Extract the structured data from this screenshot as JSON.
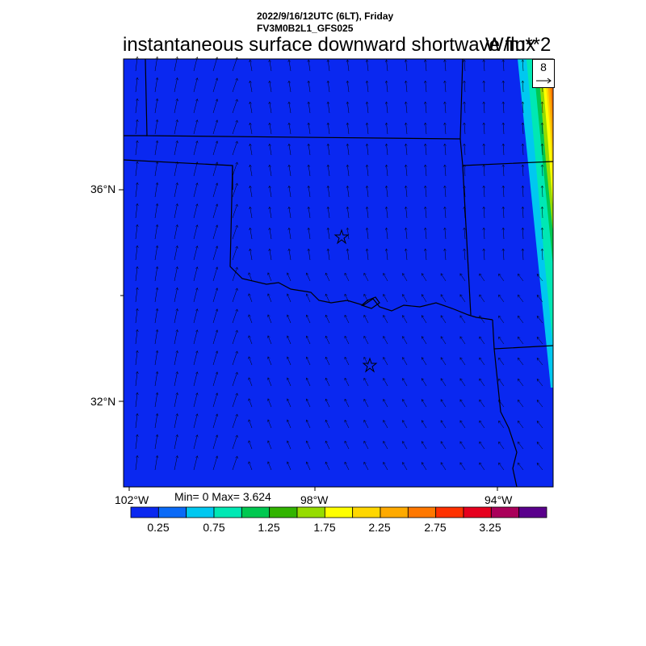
{
  "header": {
    "datetime": "2022/9/16/12UTC (6LT), Friday",
    "model": "FV3M0B2L1_GFS025",
    "title": "instantaneous surface downward shortwave flux",
    "units": "W/m**2"
  },
  "map": {
    "lat_labels": [
      "36°N",
      "32°N"
    ],
    "lon_labels": [
      "102°W",
      "98°W",
      "94°W"
    ],
    "field_color": "#0a28f0",
    "vector_ref_value": "8"
  },
  "stats": {
    "text": "Min= 0 Max= 3.624"
  },
  "colorbar": {
    "colors": [
      "#0a28f0",
      "#0a6af7",
      "#00c8f0",
      "#00e8b4",
      "#00c850",
      "#32b400",
      "#96dc00",
      "#ffff00",
      "#ffd700",
      "#ffaa00",
      "#ff7800",
      "#ff3200",
      "#e6001e",
      "#aa005a",
      "#5a008c"
    ],
    "labels": [
      "0.25",
      "0.75",
      "1.25",
      "1.75",
      "2.25",
      "2.75",
      "3.25"
    ]
  }
}
